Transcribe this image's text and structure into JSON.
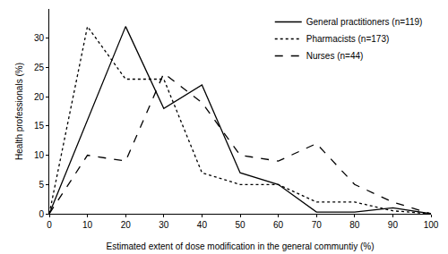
{
  "chart_data": {
    "type": "line",
    "x_label": "Estimated extent of dose modification in the general communtiy (%)",
    "y_label": "Health professionals (%)",
    "x": [
      0,
      10,
      20,
      30,
      40,
      50,
      60,
      70,
      80,
      90,
      100
    ],
    "series": [
      {
        "name": "General practitioners (n=119)",
        "color": "#000000",
        "line_style": "solid",
        "values": [
          0,
          16,
          32,
          18,
          22,
          7,
          5,
          0.3,
          0.3,
          1,
          0
        ]
      },
      {
        "name": "Pharmacists (n=173)",
        "color": "#000000",
        "line_style": "dot",
        "values": [
          0,
          32,
          23,
          23,
          7,
          5,
          5,
          2,
          2,
          0.5,
          0
        ]
      },
      {
        "name": "Nurses (n=44)",
        "color": "#000000",
        "line_style": "dash",
        "values": [
          0,
          10,
          9,
          24,
          19,
          10,
          9,
          12,
          5,
          2,
          0
        ]
      }
    ],
    "xlim": [
      0,
      100
    ],
    "xticks": [
      0,
      10,
      20,
      30,
      40,
      50,
      60,
      70,
      80,
      90,
      100
    ],
    "ylim": [
      0,
      35
    ],
    "yticks": [
      0,
      5,
      10,
      15,
      20,
      25,
      30
    ],
    "grid": false,
    "legend": "top-right"
  }
}
